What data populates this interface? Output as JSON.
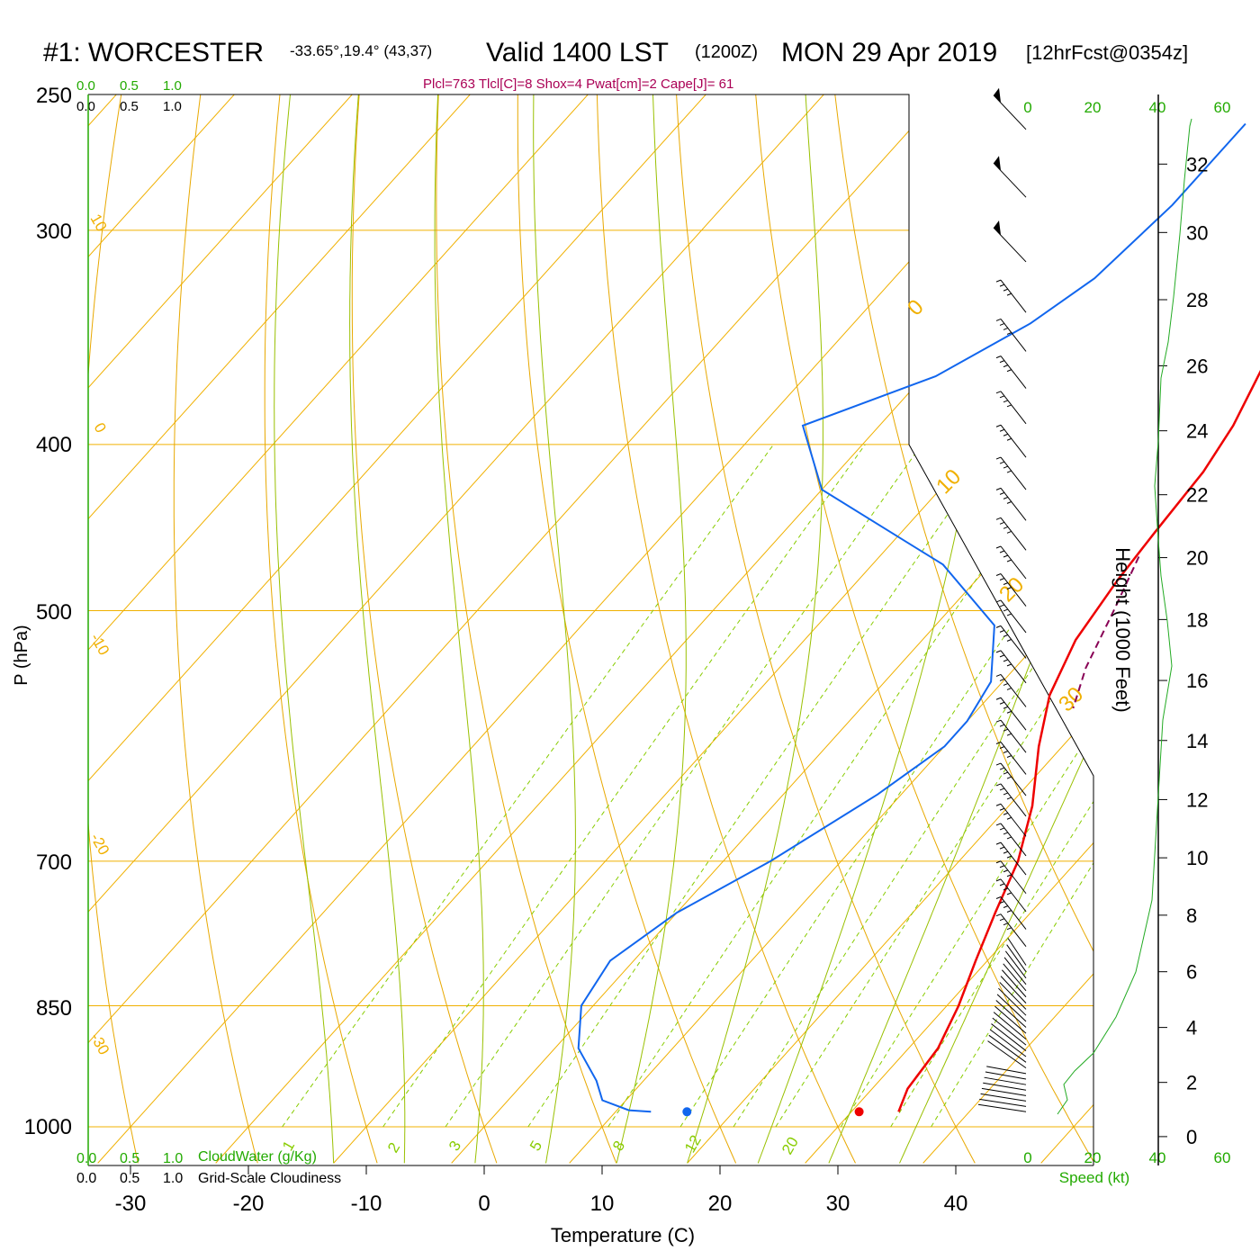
{
  "title": {
    "station": "#1: WORCESTER",
    "coords": "-33.65°,19.4° (43,37)",
    "valid": "Valid 1400 LST",
    "zulu": "(1200Z)",
    "date": "MON 29 Apr 2019",
    "forecast": "[12hrFcst@0354z]"
  },
  "indices": "Plcl=763 Tlcl[C]=8 Shox=4 Pwat[cm]=2 Cape[J]= 61",
  "scale_labels": {
    "cloudwater_ticks": [
      "0.0",
      "0.5",
      "1.0"
    ],
    "cloudiness_ticks": [
      "0.0",
      "0.5",
      "1.0"
    ],
    "cloudwater_label": "CloudWater (g/Kg)",
    "cloudiness_label": "Grid-Scale Cloudiness",
    "speed_ticks": [
      "0",
      "20",
      "40",
      "60"
    ],
    "speed_label": "Speed (kt)"
  },
  "colors": {
    "temperature": "#ee0000",
    "dewpoint": "#1166ee",
    "parcel": "#880055",
    "isotherm": "#f0b000",
    "dry_adiabat": "#e8a800",
    "moist_adiabat": "#99c000",
    "mixing_ratio": "#88cc00",
    "speed": "#22aa22",
    "indices": "#aa0055",
    "green_text": "#22aa00"
  },
  "chart_data": {
    "type": "line",
    "xlabel": "Temperature (C)",
    "ylabel": "P (hPa)",
    "y2label": "Height (1000 Feet)",
    "xlim": [
      -30,
      40
    ],
    "x_ticks": [
      -30,
      -20,
      -10,
      0,
      10,
      20,
      30,
      40
    ],
    "y_ticks": [
      250,
      300,
      400,
      500,
      700,
      850,
      1000
    ],
    "height_ticks": [
      0,
      2,
      4,
      6,
      8,
      10,
      12,
      14,
      16,
      18,
      20,
      22,
      24,
      26,
      28,
      30,
      32
    ],
    "isotherm_labels": [
      "10",
      "0",
      "-10",
      "-20",
      "-30",
      "0",
      "10",
      "20",
      "30"
    ],
    "mixing_ratio_labels": [
      "1",
      "2",
      "3",
      "5",
      "8",
      "12",
      "20"
    ],
    "series": [
      {
        "name": "",
        "key": "temperature",
        "points": [
          [
            2.5,
            260
          ],
          [
            4,
            300
          ],
          [
            6,
            330
          ],
          [
            8,
            360
          ],
          [
            10,
            390
          ],
          [
            11,
            415
          ],
          [
            11.5,
            450
          ],
          [
            12,
            480
          ],
          [
            13,
            520
          ],
          [
            15,
            560
          ],
          [
            18,
            600
          ],
          [
            22,
            650
          ],
          [
            25,
            700
          ],
          [
            27,
            750
          ],
          [
            29,
            800
          ],
          [
            31,
            850
          ],
          [
            32.5,
            900
          ],
          [
            33,
            950
          ],
          [
            34,
            980
          ]
        ]
      },
      {
        "name": "",
        "key": "dewpoint",
        "points": [
          [
            -12,
            260
          ],
          [
            -12,
            290
          ],
          [
            -13,
            320
          ],
          [
            -15,
            340
          ],
          [
            -19,
            365
          ],
          [
            -26.5,
            390
          ],
          [
            -20,
            425
          ],
          [
            -4,
            470
          ],
          [
            5,
            510
          ],
          [
            9,
            550
          ],
          [
            10,
            580
          ],
          [
            10,
            600
          ],
          [
            8,
            640
          ],
          [
            4,
            700
          ],
          [
            0,
            750
          ],
          [
            -2,
            800
          ],
          [
            -1,
            850
          ],
          [
            2,
            900
          ],
          [
            6,
            940
          ],
          [
            8,
            965
          ],
          [
            11,
            978
          ],
          [
            13,
            980
          ]
        ]
      },
      {
        "name": "",
        "key": "parcel",
        "points": [
          [
            12,
            465
          ],
          [
            14,
            500
          ],
          [
            16,
            540
          ],
          [
            18,
            570
          ]
        ]
      }
    ],
    "surface_points": [
      {
        "key": "dewpoint",
        "value": 17.2,
        "p": 980
      },
      {
        "key": "temperature",
        "value": 31.8,
        "p": 980
      }
    ]
  }
}
